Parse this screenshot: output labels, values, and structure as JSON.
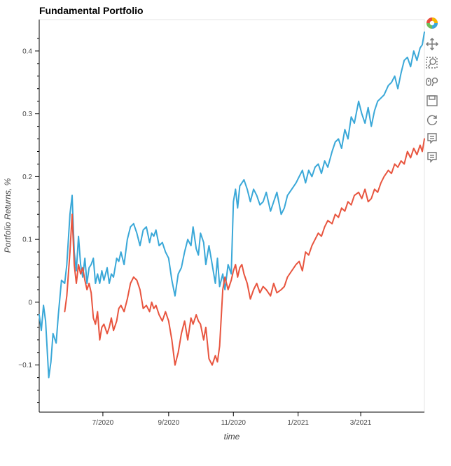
{
  "chart_data": {
    "type": "line",
    "title": "Fundamental Portfolio",
    "xlabel": "time",
    "ylabel": "Portfolio Returns, %",
    "x_ticks": [
      "7/2020",
      "9/2020",
      "11/2020",
      "1/2021",
      "3/2021"
    ],
    "y_ticks": [
      "0.4",
      "0.3",
      "0.2",
      "0.1",
      "0",
      "−0.1"
    ],
    "xlim": [
      "2020-05-02",
      "2021-04-30"
    ],
    "ylim": [
      -0.175,
      0.45
    ],
    "grid": false,
    "series": [
      {
        "color": "#3aa8d8",
        "x": [
          "2020-05-02",
          "2020-05-04",
          "2020-05-06",
          "2020-05-08",
          "2020-05-11",
          "2020-05-13",
          "2020-05-15",
          "2020-05-18",
          "2020-05-20",
          "2020-05-23",
          "2020-05-26",
          "2020-05-28",
          "2020-05-31",
          "2020-06-02",
          "2020-06-04",
          "2020-06-06",
          "2020-06-08",
          "2020-06-10",
          "2020-06-12",
          "2020-06-14",
          "2020-06-16",
          "2020-06-18",
          "2020-06-20",
          "2020-06-22",
          "2020-06-24",
          "2020-06-26",
          "2020-06-28",
          "2020-06-30",
          "2020-07-02",
          "2020-07-05",
          "2020-07-07",
          "2020-07-09",
          "2020-07-11",
          "2020-07-14",
          "2020-07-16",
          "2020-07-18",
          "2020-07-21",
          "2020-07-24",
          "2020-07-27",
          "2020-07-30",
          "2020-08-02",
          "2020-08-05",
          "2020-08-08",
          "2020-08-11",
          "2020-08-14",
          "2020-08-16",
          "2020-08-18",
          "2020-08-20",
          "2020-08-23",
          "2020-08-26",
          "2020-08-29",
          "2020-09-01",
          "2020-09-04",
          "2020-09-07",
          "2020-09-10",
          "2020-09-13",
          "2020-09-16",
          "2020-09-19",
          "2020-09-22",
          "2020-09-24",
          "2020-09-27",
          "2020-09-29",
          "2020-10-01",
          "2020-10-04",
          "2020-10-06",
          "2020-10-09",
          "2020-10-12",
          "2020-10-15",
          "2020-10-17",
          "2020-10-19",
          "2020-10-22",
          "2020-10-24",
          "2020-10-27",
          "2020-10-30",
          "2020-11-01",
          "2020-11-03",
          "2020-11-05",
          "2020-11-07",
          "2020-11-09",
          "2020-11-11",
          "2020-11-14",
          "2020-11-17",
          "2020-11-20",
          "2020-11-23",
          "2020-11-26",
          "2020-11-29",
          "2020-12-02",
          "2020-12-06",
          "2020-12-09",
          "2020-12-12",
          "2020-12-16",
          "2020-12-19",
          "2020-12-22",
          "2020-12-26",
          "2020-12-30",
          "2021-01-02",
          "2021-01-05",
          "2021-01-08",
          "2021-01-11",
          "2021-01-14",
          "2021-01-17",
          "2021-01-20",
          "2021-01-23",
          "2021-01-26",
          "2021-01-29",
          "2021-02-02",
          "2021-02-05",
          "2021-02-08",
          "2021-02-11",
          "2021-02-14",
          "2021-02-17",
          "2021-02-20",
          "2021-02-23",
          "2021-02-27",
          "2021-03-02",
          "2021-03-05",
          "2021-03-08",
          "2021-03-11",
          "2021-03-14",
          "2021-03-17",
          "2021-03-20",
          "2021-03-23",
          "2021-03-27",
          "2021-03-30",
          "2021-04-02",
          "2021-04-05",
          "2021-04-08",
          "2021-04-11",
          "2021-04-14",
          "2021-04-17",
          "2021-04-20",
          "2021-04-23",
          "2021-04-26",
          "2021-04-28",
          "2021-04-30"
        ],
        "y": [
          -0.02,
          -0.045,
          -0.005,
          -0.03,
          -0.12,
          -0.095,
          -0.05,
          -0.065,
          -0.02,
          0.035,
          0.03,
          0.06,
          0.14,
          0.17,
          0.08,
          0.05,
          0.105,
          0.06,
          0.04,
          0.07,
          0.03,
          0.055,
          0.06,
          0.07,
          0.03,
          0.045,
          0.03,
          0.05,
          0.035,
          0.055,
          0.03,
          0.045,
          0.04,
          0.07,
          0.065,
          0.08,
          0.06,
          0.1,
          0.12,
          0.125,
          0.11,
          0.09,
          0.115,
          0.12,
          0.095,
          0.11,
          0.105,
          0.115,
          0.09,
          0.095,
          0.08,
          0.07,
          0.035,
          0.01,
          0.045,
          0.055,
          0.08,
          0.1,
          0.09,
          0.12,
          0.085,
          0.075,
          0.11,
          0.095,
          0.06,
          0.09,
          0.06,
          0.03,
          0.07,
          0.025,
          0.045,
          0.02,
          0.06,
          0.045,
          0.16,
          0.18,
          0.15,
          0.185,
          0.19,
          0.195,
          0.18,
          0.16,
          0.18,
          0.17,
          0.155,
          0.16,
          0.175,
          0.145,
          0.16,
          0.175,
          0.14,
          0.15,
          0.17,
          0.18,
          0.19,
          0.2,
          0.21,
          0.19,
          0.21,
          0.2,
          0.215,
          0.22,
          0.205,
          0.225,
          0.215,
          0.24,
          0.255,
          0.26,
          0.245,
          0.275,
          0.26,
          0.295,
          0.285,
          0.32,
          0.3,
          0.285,
          0.31,
          0.28,
          0.305,
          0.32,
          0.325,
          0.33,
          0.345,
          0.35,
          0.36,
          0.34,
          0.365,
          0.385,
          0.39,
          0.375,
          0.4,
          0.385,
          0.405,
          0.41,
          0.43
        ]
      },
      {
        "color": "#e8553f",
        "x": [
          "2020-05-26",
          "2020-05-28",
          "2020-05-31",
          "2020-06-02",
          "2020-06-04",
          "2020-06-06",
          "2020-06-08",
          "2020-06-10",
          "2020-06-12",
          "2020-06-14",
          "2020-06-16",
          "2020-06-18",
          "2020-06-20",
          "2020-06-22",
          "2020-06-24",
          "2020-06-26",
          "2020-06-28",
          "2020-06-30",
          "2020-07-02",
          "2020-07-05",
          "2020-07-07",
          "2020-07-09",
          "2020-07-11",
          "2020-07-14",
          "2020-07-16",
          "2020-07-18",
          "2020-07-21",
          "2020-07-24",
          "2020-07-27",
          "2020-07-30",
          "2020-08-02",
          "2020-08-05",
          "2020-08-08",
          "2020-08-11",
          "2020-08-14",
          "2020-08-16",
          "2020-08-18",
          "2020-08-20",
          "2020-08-23",
          "2020-08-26",
          "2020-08-29",
          "2020-09-01",
          "2020-09-04",
          "2020-09-07",
          "2020-09-10",
          "2020-09-13",
          "2020-09-16",
          "2020-09-19",
          "2020-09-22",
          "2020-09-24",
          "2020-09-27",
          "2020-09-29",
          "2020-10-01",
          "2020-10-04",
          "2020-10-06",
          "2020-10-09",
          "2020-10-12",
          "2020-10-15",
          "2020-10-17",
          "2020-10-19",
          "2020-10-22",
          "2020-10-24",
          "2020-10-27",
          "2020-10-30",
          "2020-11-01",
          "2020-11-03",
          "2020-11-05",
          "2020-11-07",
          "2020-11-09",
          "2020-11-11",
          "2020-11-14",
          "2020-11-17",
          "2020-11-20",
          "2020-11-23",
          "2020-11-26",
          "2020-11-29",
          "2020-12-02",
          "2020-12-06",
          "2020-12-09",
          "2020-12-12",
          "2020-12-16",
          "2020-12-19",
          "2020-12-22",
          "2020-12-26",
          "2020-12-30",
          "2021-01-02",
          "2021-01-05",
          "2021-01-08",
          "2021-01-11",
          "2021-01-14",
          "2021-01-17",
          "2021-01-20",
          "2021-01-23",
          "2021-01-26",
          "2021-01-29",
          "2021-02-02",
          "2021-02-05",
          "2021-02-08",
          "2021-02-11",
          "2021-02-14",
          "2021-02-17",
          "2021-02-20",
          "2021-02-23",
          "2021-02-27",
          "2021-03-02",
          "2021-03-05",
          "2021-03-08",
          "2021-03-11",
          "2021-03-14",
          "2021-03-17",
          "2021-03-20",
          "2021-03-23",
          "2021-03-27",
          "2021-03-30",
          "2021-04-02",
          "2021-04-05",
          "2021-04-08",
          "2021-04-11",
          "2021-04-14",
          "2021-04-17",
          "2021-04-20",
          "2021-04-23",
          "2021-04-26",
          "2021-04-28",
          "2021-04-30"
        ],
        "y": [
          -0.015,
          0.01,
          0.08,
          0.14,
          0.06,
          0.03,
          0.06,
          0.045,
          0.055,
          0.035,
          0.02,
          0.03,
          0.015,
          -0.025,
          -0.035,
          -0.015,
          -0.06,
          -0.04,
          -0.035,
          -0.05,
          -0.04,
          -0.025,
          -0.045,
          -0.03,
          -0.01,
          -0.005,
          -0.015,
          0.005,
          0.03,
          0.04,
          0.035,
          0.02,
          -0.01,
          -0.005,
          -0.015,
          0,
          -0.01,
          -0.005,
          -0.02,
          -0.03,
          -0.015,
          -0.03,
          -0.06,
          -0.1,
          -0.08,
          -0.05,
          -0.03,
          -0.06,
          -0.025,
          -0.035,
          -0.02,
          -0.03,
          -0.035,
          -0.06,
          -0.04,
          -0.09,
          -0.1,
          -0.085,
          -0.095,
          -0.07,
          0.02,
          0.04,
          0.02,
          0.035,
          0.05,
          0.06,
          0.04,
          0.055,
          0.06,
          0.045,
          0.03,
          0.005,
          0.02,
          0.03,
          0.015,
          0.025,
          0.02,
          0.01,
          0.03,
          0.015,
          0.02,
          0.025,
          0.04,
          0.05,
          0.06,
          0.065,
          0.05,
          0.08,
          0.075,
          0.09,
          0.1,
          0.11,
          0.105,
          0.12,
          0.13,
          0.125,
          0.14,
          0.135,
          0.15,
          0.145,
          0.16,
          0.155,
          0.17,
          0.175,
          0.165,
          0.18,
          0.16,
          0.165,
          0.18,
          0.175,
          0.19,
          0.2,
          0.21,
          0.205,
          0.22,
          0.215,
          0.225,
          0.22,
          0.24,
          0.23,
          0.245,
          0.235,
          0.25,
          0.24,
          0.26
        ]
      }
    ]
  },
  "toolbar": {
    "tools": [
      "bokeh-logo-icon",
      "pan-icon",
      "box-zoom-icon",
      "wheel-zoom-icon",
      "save-icon",
      "reset-icon",
      "hover-icon",
      "hover-icon"
    ]
  }
}
